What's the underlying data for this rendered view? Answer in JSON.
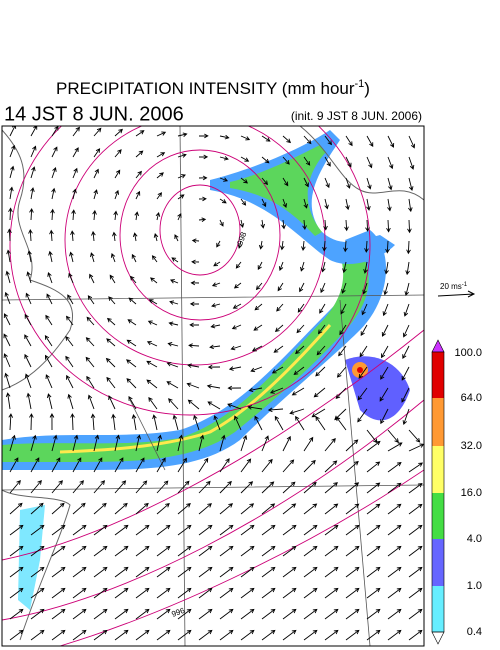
{
  "header": {
    "title": "PRECIPITATION INTENSITY (mm hour",
    "title_superscript": "-1",
    "title_close": ")",
    "valid_time": "14 JST 8 JUN. 2006",
    "init_time": "(init. 9 JST 8 JUN. 2006)"
  },
  "wind_reference": {
    "label": "20 ms",
    "superscript": "-1"
  },
  "contour_labels": [
    "998",
    "996"
  ],
  "colorbar": {
    "labels": [
      "100.0",
      "64.0",
      "32.0",
      "16.0",
      "4.0",
      "1.0",
      "0.4"
    ]
  }
}
